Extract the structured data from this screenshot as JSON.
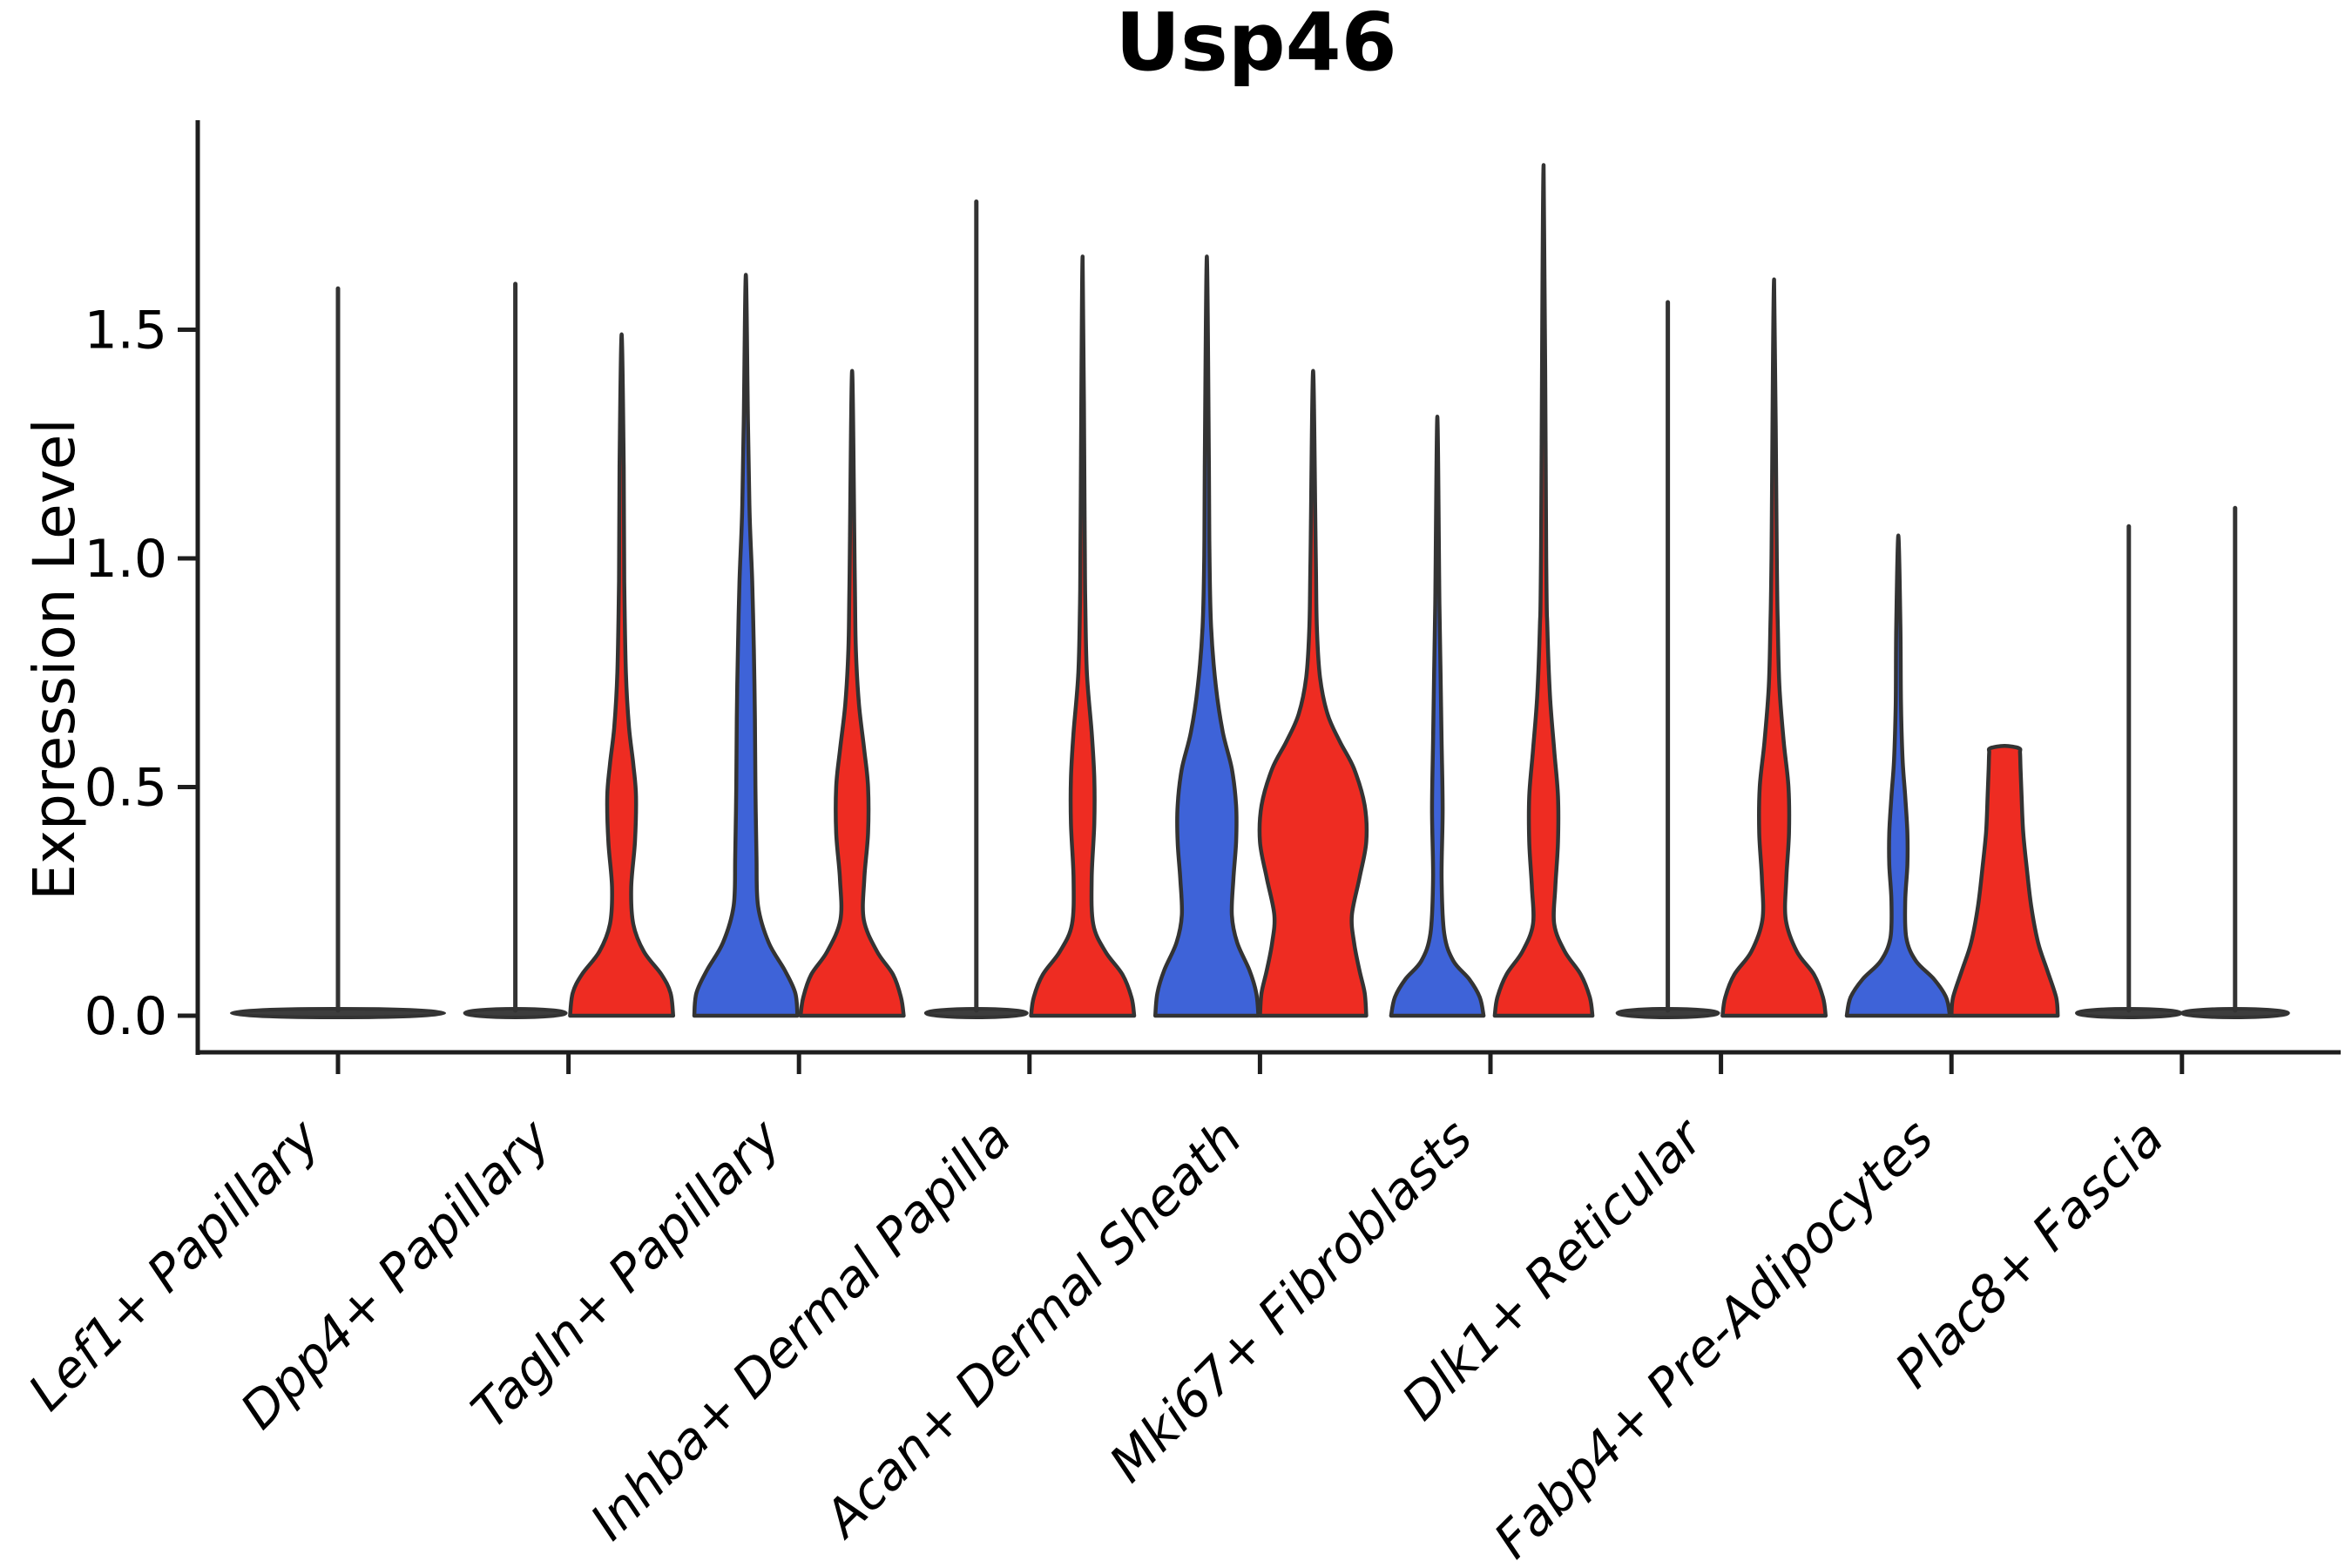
{
  "title": "Usp46",
  "ylabel": "Expression Level",
  "colors": {
    "blue": "#3E63D8",
    "red": "#EE2C22",
    "flat_dark": "#3d3d3d",
    "outline": "#333333",
    "axis": "#1e1e1e"
  },
  "chart_data": {
    "type": "violin",
    "title": "Usp46",
    "xlabel": "",
    "ylabel": "Expression Level",
    "ylim": [
      0,
      1.9
    ],
    "yticks": [
      "0.0",
      "0.5",
      "1.0",
      "1.5"
    ],
    "ytick_values": [
      0.0,
      0.5,
      1.0,
      1.5
    ],
    "grid": false,
    "legend": "none",
    "categories": [
      "Lef1+ Papillary",
      "Dpp4+ Papillary",
      "Tagln+ Papillary",
      "Inhba+ Dermal Papilla",
      "Acan+ Dermal Sheath",
      "Mki67+ Fibroblasts",
      "Dlk1+ Reticular",
      "Fabp4+ Pre-Adipocytes",
      "Plac8+ Fascia"
    ],
    "violins": [
      {
        "category_index": 0,
        "side": "center",
        "color": "flat_dark",
        "flat": true,
        "flat_halfwidth": 2.0,
        "max_expression": 1.59
      },
      {
        "category_index": 1,
        "side": "left",
        "color": "flat_dark",
        "flat": true,
        "flat_halfwidth": 0.95,
        "max_expression": 1.6
      },
      {
        "category_index": 1,
        "side": "right",
        "color": "red",
        "flat": false,
        "max_expression": 1.49,
        "profile": [
          [
            0,
            0.97
          ],
          [
            0.05,
            0.92
          ],
          [
            0.09,
            0.75
          ],
          [
            0.14,
            0.42
          ],
          [
            0.2,
            0.22
          ],
          [
            0.28,
            0.18
          ],
          [
            0.38,
            0.25
          ],
          [
            0.48,
            0.27
          ],
          [
            0.55,
            0.22
          ],
          [
            0.63,
            0.14
          ],
          [
            0.75,
            0.08
          ],
          [
            0.95,
            0.05
          ],
          [
            1.2,
            0.04
          ],
          [
            1.49,
            0
          ]
        ]
      },
      {
        "category_index": 2,
        "side": "left",
        "color": "blue",
        "flat": false,
        "max_expression": 1.62,
        "profile": [
          [
            0,
            0.97
          ],
          [
            0.05,
            0.93
          ],
          [
            0.1,
            0.73
          ],
          [
            0.16,
            0.43
          ],
          [
            0.24,
            0.23
          ],
          [
            0.35,
            0.2
          ],
          [
            0.5,
            0.18
          ],
          [
            0.65,
            0.17
          ],
          [
            0.8,
            0.15
          ],
          [
            0.95,
            0.12
          ],
          [
            1.1,
            0.07
          ],
          [
            1.3,
            0.04
          ],
          [
            1.62,
            0
          ]
        ]
      },
      {
        "category_index": 2,
        "side": "right",
        "color": "red",
        "flat": false,
        "max_expression": 1.41,
        "profile": [
          [
            0,
            0.97
          ],
          [
            0.04,
            0.92
          ],
          [
            0.09,
            0.77
          ],
          [
            0.14,
            0.47
          ],
          [
            0.21,
            0.22
          ],
          [
            0.3,
            0.23
          ],
          [
            0.4,
            0.3
          ],
          [
            0.5,
            0.3
          ],
          [
            0.58,
            0.23
          ],
          [
            0.68,
            0.13
          ],
          [
            0.8,
            0.07
          ],
          [
            0.95,
            0.05
          ],
          [
            1.41,
            0
          ]
        ]
      },
      {
        "category_index": 3,
        "side": "left",
        "color": "flat_dark",
        "flat": true,
        "flat_halfwidth": 0.95,
        "max_expression": 1.78
      },
      {
        "category_index": 3,
        "side": "right",
        "color": "red",
        "flat": false,
        "max_expression": 1.66,
        "profile": [
          [
            0,
            0.97
          ],
          [
            0.04,
            0.92
          ],
          [
            0.09,
            0.75
          ],
          [
            0.14,
            0.43
          ],
          [
            0.2,
            0.2
          ],
          [
            0.3,
            0.17
          ],
          [
            0.42,
            0.22
          ],
          [
            0.52,
            0.22
          ],
          [
            0.62,
            0.17
          ],
          [
            0.75,
            0.08
          ],
          [
            0.9,
            0.05
          ],
          [
            1.05,
            0.04
          ],
          [
            1.66,
            0
          ]
        ]
      },
      {
        "category_index": 4,
        "side": "left",
        "color": "blue",
        "flat": false,
        "max_expression": 1.66,
        "profile": [
          [
            0,
            0.97
          ],
          [
            0.05,
            0.93
          ],
          [
            0.1,
            0.8
          ],
          [
            0.16,
            0.57
          ],
          [
            0.22,
            0.47
          ],
          [
            0.3,
            0.5
          ],
          [
            0.38,
            0.55
          ],
          [
            0.46,
            0.55
          ],
          [
            0.54,
            0.47
          ],
          [
            0.62,
            0.3
          ],
          [
            0.72,
            0.17
          ],
          [
            0.85,
            0.08
          ],
          [
            1.0,
            0.05
          ],
          [
            1.2,
            0.04
          ],
          [
            1.66,
            0
          ]
        ]
      },
      {
        "category_index": 4,
        "side": "right",
        "color": "red",
        "flat": false,
        "max_expression": 1.41,
        "profile": [
          [
            0,
            1.0
          ],
          [
            0.05,
            0.97
          ],
          [
            0.1,
            0.87
          ],
          [
            0.16,
            0.77
          ],
          [
            0.22,
            0.73
          ],
          [
            0.3,
            0.87
          ],
          [
            0.38,
            1.0
          ],
          [
            0.46,
            0.97
          ],
          [
            0.54,
            0.77
          ],
          [
            0.6,
            0.5
          ],
          [
            0.66,
            0.27
          ],
          [
            0.74,
            0.13
          ],
          [
            0.85,
            0.07
          ],
          [
            1.0,
            0.05
          ],
          [
            1.41,
            0
          ]
        ]
      },
      {
        "category_index": 5,
        "side": "left",
        "color": "blue",
        "flat": false,
        "max_expression": 1.31,
        "profile": [
          [
            0,
            0.87
          ],
          [
            0.04,
            0.8
          ],
          [
            0.08,
            0.6
          ],
          [
            0.12,
            0.3
          ],
          [
            0.18,
            0.13
          ],
          [
            0.3,
            0.08
          ],
          [
            0.45,
            0.1
          ],
          [
            0.6,
            0.08
          ],
          [
            0.75,
            0.06
          ],
          [
            0.9,
            0.04
          ],
          [
            1.31,
            0
          ]
        ]
      },
      {
        "category_index": 5,
        "side": "right",
        "color": "red",
        "flat": false,
        "max_expression": 1.86,
        "profile": [
          [
            0,
            0.92
          ],
          [
            0.04,
            0.87
          ],
          [
            0.09,
            0.7
          ],
          [
            0.14,
            0.4
          ],
          [
            0.2,
            0.2
          ],
          [
            0.28,
            0.22
          ],
          [
            0.38,
            0.27
          ],
          [
            0.48,
            0.27
          ],
          [
            0.58,
            0.2
          ],
          [
            0.7,
            0.12
          ],
          [
            0.85,
            0.07
          ],
          [
            1.0,
            0.05
          ],
          [
            1.86,
            0
          ]
        ]
      },
      {
        "category_index": 6,
        "side": "left",
        "color": "flat_dark",
        "flat": true,
        "flat_halfwidth": 0.95,
        "max_expression": 1.56
      },
      {
        "category_index": 6,
        "side": "right",
        "color": "red",
        "flat": false,
        "max_expression": 1.61,
        "profile": [
          [
            0,
            0.97
          ],
          [
            0.04,
            0.92
          ],
          [
            0.09,
            0.75
          ],
          [
            0.14,
            0.43
          ],
          [
            0.21,
            0.22
          ],
          [
            0.3,
            0.23
          ],
          [
            0.4,
            0.28
          ],
          [
            0.5,
            0.27
          ],
          [
            0.6,
            0.18
          ],
          [
            0.72,
            0.1
          ],
          [
            0.85,
            0.07
          ],
          [
            1.0,
            0.05
          ],
          [
            1.61,
            0
          ]
        ]
      },
      {
        "category_index": 7,
        "side": "left",
        "color": "blue",
        "flat": false,
        "max_expression": 1.05,
        "profile": [
          [
            0,
            0.97
          ],
          [
            0.04,
            0.9
          ],
          [
            0.08,
            0.67
          ],
          [
            0.12,
            0.33
          ],
          [
            0.17,
            0.15
          ],
          [
            0.25,
            0.13
          ],
          [
            0.33,
            0.17
          ],
          [
            0.4,
            0.17
          ],
          [
            0.48,
            0.13
          ],
          [
            0.56,
            0.08
          ],
          [
            0.68,
            0.05
          ],
          [
            0.85,
            0.04
          ],
          [
            1.05,
            0
          ]
        ]
      },
      {
        "category_index": 7,
        "side": "right",
        "color": "red",
        "flat": false,
        "max_expression": 0.59,
        "flat_top": true,
        "profile": [
          [
            0,
            1.0
          ],
          [
            0.04,
            0.97
          ],
          [
            0.1,
            0.8
          ],
          [
            0.16,
            0.63
          ],
          [
            0.24,
            0.5
          ],
          [
            0.32,
            0.42
          ],
          [
            0.4,
            0.35
          ],
          [
            0.48,
            0.32
          ],
          [
            0.54,
            0.3
          ],
          [
            0.575,
            0.29
          ],
          [
            0.585,
            0.27
          ],
          [
            0.59,
            0
          ]
        ]
      },
      {
        "category_index": 8,
        "side": "left",
        "color": "flat_dark",
        "flat": true,
        "flat_halfwidth": 0.98,
        "max_expression": 1.07
      },
      {
        "category_index": 8,
        "side": "right",
        "color": "flat_dark",
        "flat": true,
        "flat_halfwidth": 1.0,
        "max_expression": 1.11
      }
    ]
  }
}
